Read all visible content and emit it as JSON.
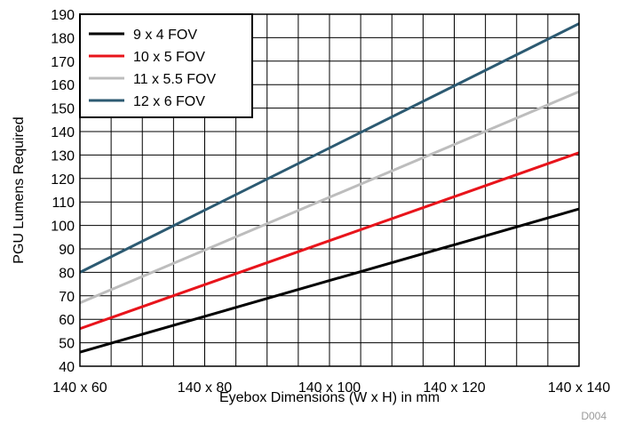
{
  "chart_data": {
    "type": "line",
    "xlabel": "Eyebox Dimensions (W x H) in mm",
    "ylabel": "PGU Lumens Required",
    "x_tick_labels": [
      "140 x 60",
      "140 x 80",
      "140 x 100",
      "140 x 120",
      "140 x 140"
    ],
    "x_tick_values": [
      60,
      80,
      100,
      120,
      140
    ],
    "xlim": [
      60,
      140
    ],
    "ylim": [
      40,
      190
    ],
    "y_ticks": [
      40,
      50,
      60,
      70,
      80,
      90,
      100,
      110,
      120,
      130,
      140,
      150,
      160,
      170,
      180,
      190
    ],
    "grid": true,
    "legend_position": "top-left",
    "series": [
      {
        "name": "9 x 4 FOV",
        "color": "#000000",
        "x": [
          60,
          140
        ],
        "y": [
          46,
          107
        ]
      },
      {
        "name": "10 x 5 FOV",
        "color": "#e8141b",
        "x": [
          60,
          140
        ],
        "y": [
          56,
          131
        ]
      },
      {
        "name": "11 x 5.5 FOV",
        "color": "#bdbdbd",
        "x": [
          60,
          140
        ],
        "y": [
          67,
          157
        ]
      },
      {
        "name": "12 x 6 FOV",
        "color": "#2c5a72",
        "x": [
          60,
          140
        ],
        "y": [
          80,
          186
        ]
      }
    ]
  },
  "figure_id": "D004"
}
